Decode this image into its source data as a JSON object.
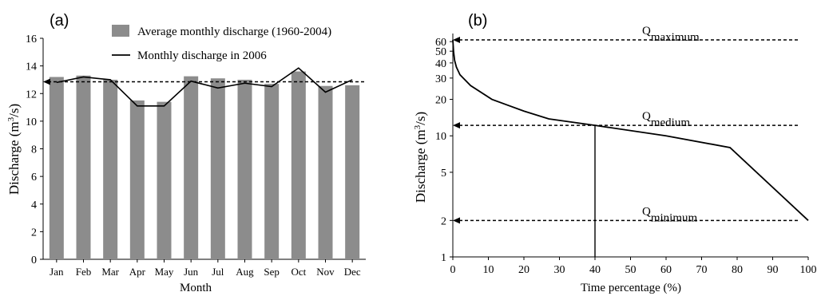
{
  "chart_data": [
    {
      "panel_label": "(a)",
      "type": "bar",
      "xlabel": "Month",
      "ylabel": "Discharge (m",
      "ylabel_sup": "3",
      "ylabel_tail": "/s)",
      "ylim": [
        0,
        16
      ],
      "yticks": [
        "0",
        "2",
        "4",
        "6",
        "8",
        "10",
        "12",
        "14",
        "16"
      ],
      "categories": [
        "Jan",
        "Feb",
        "Mar",
        "Apr",
        "May",
        "Jun",
        "Jul",
        "Aug",
        "Sep",
        "Oct",
        "Nov",
        "Dec"
      ],
      "series": [
        {
          "name": "Average monthly discharge (1960-2004)",
          "kind": "bar",
          "values": [
            13.2,
            13.3,
            13.0,
            11.5,
            11.4,
            13.25,
            13.1,
            13.0,
            12.7,
            13.6,
            12.55,
            12.6
          ]
        },
        {
          "name": "Monthly discharge in 2006",
          "kind": "line",
          "values": [
            12.8,
            13.2,
            13.0,
            11.1,
            11.1,
            12.9,
            12.4,
            12.75,
            12.5,
            13.85,
            12.1,
            13.0
          ]
        }
      ],
      "reference_line": 12.85,
      "legend_position": "top-center",
      "colors": {
        "bar": "#8c8c8c",
        "line": "#000000"
      }
    },
    {
      "panel_label": "(b)",
      "type": "line",
      "xlabel": "Time percentage (%)",
      "ylabel": "Discharge (m",
      "ylabel_sup": "3",
      "ylabel_tail": "/s)",
      "xlim": [
        0,
        100
      ],
      "xticks": [
        "0",
        "10",
        "20",
        "30",
        "40",
        "50",
        "60",
        "70",
        "80",
        "90",
        "100"
      ],
      "yscale": "log",
      "ylim": [
        1,
        70
      ],
      "yticks": [
        "1",
        "2",
        "5",
        "10",
        "20",
        "30",
        "40",
        "50",
        "60"
      ],
      "series": [
        {
          "name": "",
          "x": [
            0,
            0.2,
            0.5,
            1,
            2,
            5,
            11,
            20,
            27,
            40,
            60,
            78,
            100
          ],
          "y": [
            62,
            50,
            42,
            37,
            32,
            26,
            20,
            16,
            13.8,
            12.2,
            10,
            8,
            2
          ]
        }
      ],
      "annotations": [
        {
          "base": "Q",
          "sub": "maximum",
          "value": 62
        },
        {
          "base": "Q",
          "sub": "medium",
          "value": 12.2
        },
        {
          "base": "Q",
          "sub": "minimum",
          "value": 2
        }
      ],
      "vertical_marker_x": 40
    }
  ]
}
